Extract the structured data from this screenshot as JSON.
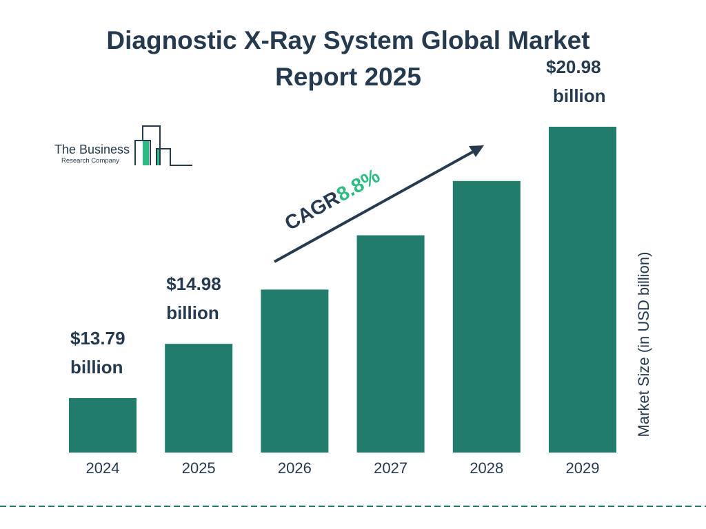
{
  "chart_data": {
    "type": "bar",
    "title": "Diagnostic X-Ray System Global Market Report 2025",
    "categories": [
      "2024",
      "2025",
      "2026",
      "2027",
      "2028",
      "2029"
    ],
    "values": [
      13.79,
      14.98,
      16.3,
      17.73,
      19.29,
      20.98
    ],
    "data_labels": [
      [
        "$13.79",
        "billion"
      ],
      [
        "$14.98",
        "billion"
      ],
      null,
      null,
      null,
      [
        "$20.98",
        "billion"
      ]
    ],
    "ylabel": "Market Size (in USD billion)",
    "xlabel": "",
    "annotation": {
      "label": "CAGR",
      "value": "8.8%"
    },
    "grid": false,
    "colors": {
      "bar": "#217c6b",
      "text": "#253a4e",
      "accent": "#2dbb84"
    }
  },
  "logo": {
    "line1": "The Business",
    "line2": "Research Company"
  }
}
